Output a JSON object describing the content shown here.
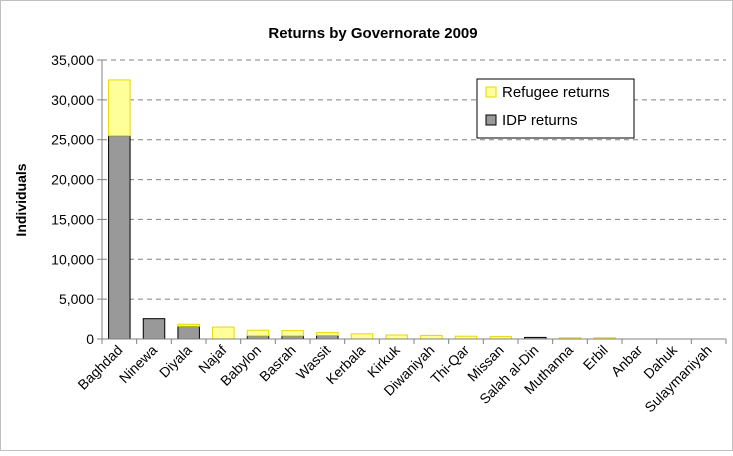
{
  "chart_data": {
    "type": "bar",
    "stacked": true,
    "title": "Returns by Governorate 2009",
    "xlabel": "",
    "ylabel": "Individuals",
    "ylim": [
      0,
      35000
    ],
    "yticks": [
      "0",
      "5,000",
      "10,000",
      "15,000",
      "20,000",
      "25,000",
      "30,000",
      "35,000"
    ],
    "grid": true,
    "legend_position": "top-right",
    "categories": [
      "Baghdad",
      "Ninewa",
      "Diyala",
      "Najaf",
      "Babylon",
      "Basrah",
      "Wassit",
      "Kerbala",
      "Kirkuk",
      "Diwaniyah",
      "Thi-Qar",
      "Missan",
      "Salah al-Din",
      "Muthanna",
      "Erbil",
      "Anbar",
      "Dahuk",
      "Sulaymaniyah"
    ],
    "series": [
      {
        "name": "IDP returns",
        "color": "#999999",
        "values": [
          25500,
          2550,
          1600,
          0,
          400,
          400,
          450,
          0,
          0,
          0,
          0,
          0,
          200,
          0,
          0,
          0,
          0,
          0
        ]
      },
      {
        "name": "Refugee returns",
        "color": "#ffff99",
        "values": [
          7000,
          0,
          250,
          1500,
          700,
          650,
          350,
          650,
          500,
          450,
          350,
          300,
          0,
          150,
          150,
          0,
          0,
          0
        ]
      }
    ]
  }
}
